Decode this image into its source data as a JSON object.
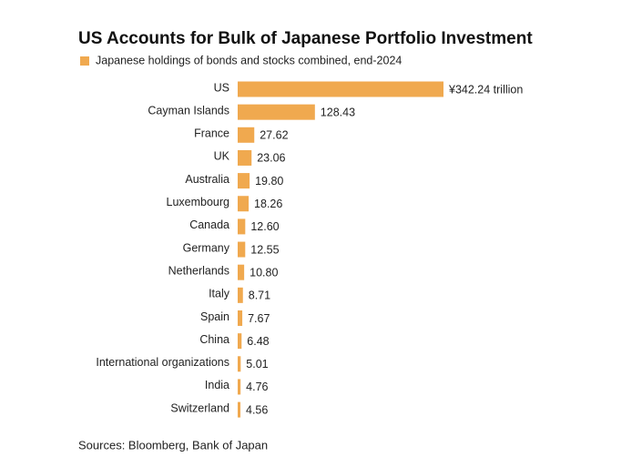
{
  "chart_data": {
    "type": "hbar",
    "title": "US Accounts for Bulk of Japanese Portfolio Investment",
    "source": "Sources: Bloomberg, Bank of Japan",
    "categories": [
      "US",
      "Cayman Islands",
      "France",
      "UK",
      "Australia",
      "Luxembourg",
      "Canada",
      "Germany",
      "Netherlands",
      "Italy",
      "Spain",
      "China",
      "International organizations",
      "India",
      "Switzerland"
    ],
    "series": [
      {
        "name": "Japanese holdings of bonds and stocks combined, end-2024",
        "color": "#f0a94f",
        "values": [
          342.24,
          128.43,
          27.62,
          23.06,
          19.8,
          18.26,
          12.6,
          12.55,
          10.8,
          8.71,
          7.67,
          6.48,
          5.01,
          4.76,
          4.56
        ],
        "value_labels": [
          "¥342.24 trillion",
          "128.43",
          "27.62",
          "23.06",
          "19.80",
          "18.26",
          "12.60",
          "12.55",
          "10.80",
          "8.71",
          "7.67",
          "6.48",
          "5.01",
          "4.76",
          "4.56"
        ]
      }
    ]
  }
}
